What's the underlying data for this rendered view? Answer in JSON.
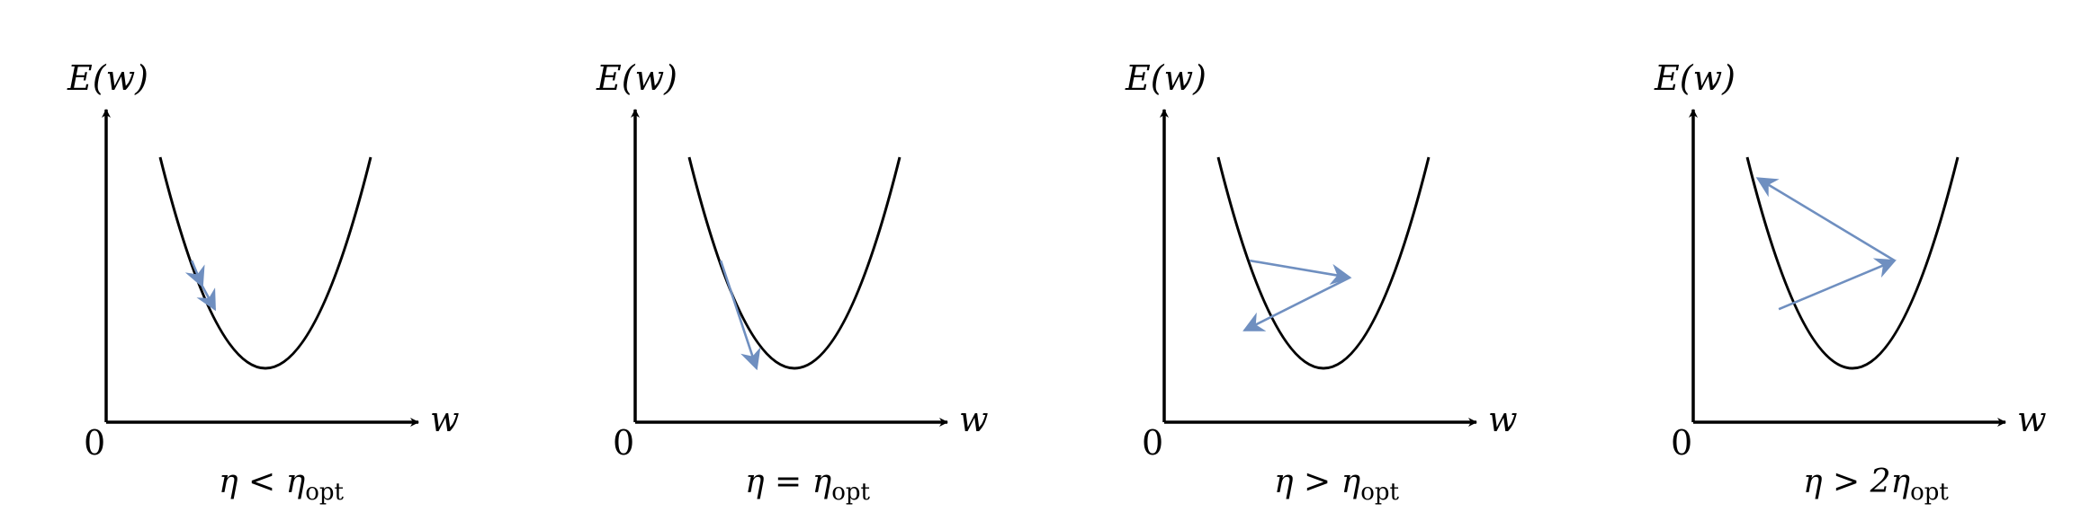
{
  "panels": [
    {
      "y_axis_label": "E(w)",
      "x_axis_label": "w",
      "origin_label": "0",
      "caption": {
        "main": "η < η",
        "sub": "opt"
      },
      "arrow_path": [
        [
          0.3,
          0.51
        ],
        [
          0.4,
          0.39
        ],
        [
          0.52,
          0.28
        ]
      ]
    },
    {
      "y_axis_label": "E(w)",
      "x_axis_label": "w",
      "origin_label": "0",
      "caption": {
        "main": "η = η",
        "sub": "opt"
      },
      "arrow_path": [
        [
          0.3,
          0.51
        ],
        [
          0.64,
          0.0
        ]
      ]
    },
    {
      "y_axis_label": "E(w)",
      "x_axis_label": "w",
      "origin_label": "0",
      "caption": {
        "main": "η > η",
        "sub": "opt"
      },
      "arrow_path": [
        [
          0.3,
          0.51
        ],
        [
          1.25,
          0.43
        ],
        [
          0.25,
          0.18
        ]
      ]
    },
    {
      "y_axis_label": "E(w)",
      "x_axis_label": "w",
      "origin_label": "0",
      "caption": {
        "main": "η > 2η",
        "sub": "opt"
      },
      "arrow_path": [
        [
          0.3,
          0.28
        ],
        [
          1.4,
          0.51
        ],
        [
          0.1,
          0.9
        ]
      ]
    }
  ],
  "colors": {
    "axis": "#000000",
    "curve": "#000000",
    "step_arrow": "#6f8fc0"
  }
}
